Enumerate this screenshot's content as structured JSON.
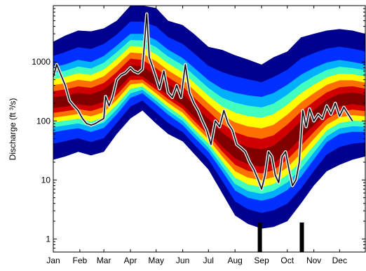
{
  "chart_data": {
    "type": "area",
    "title": "",
    "xlabel": "",
    "ylabel": "Discharge (ft ³/s)",
    "yscale": "log",
    "ylim": [
      0.6,
      9000
    ],
    "xlim": [
      1,
      365
    ],
    "grid": false,
    "legend": "none",
    "x_ticks": [
      {
        "label": "Jan",
        "day": 1
      },
      {
        "label": "Feb",
        "day": 32
      },
      {
        "label": "Mar",
        "day": 60
      },
      {
        "label": "Apr",
        "day": 91
      },
      {
        "label": "May",
        "day": 121
      },
      {
        "label": "Jun",
        "day": 152
      },
      {
        "label": "Jul",
        "day": 182
      },
      {
        "label": "Aug",
        "day": 213
      },
      {
        "label": "Sep",
        "day": 244
      },
      {
        "label": "Oct",
        "day": 274
      },
      {
        "label": "Nov",
        "day": 305
      },
      {
        "label": "Dec",
        "day": 335
      }
    ],
    "y_ticks": [
      {
        "label": "1",
        "value": 1
      },
      {
        "label": "10",
        "value": 10
      },
      {
        "label": "100",
        "value": 100
      },
      {
        "label": "1000",
        "value": 1000
      }
    ],
    "band_colors": [
      "#00008f",
      "#0030ff",
      "#00b0ff",
      "#40ffbf",
      "#ffff00",
      "#ff7000",
      "#d00000",
      "#800000"
    ],
    "line_color": "#111111",
    "line_halo_color": "#e8e8e8",
    "marker_color": "#000000",
    "band_envelope": {
      "x": [
        1,
        15,
        30,
        45,
        60,
        75,
        91,
        105,
        121,
        135,
        152,
        165,
        182,
        198,
        213,
        228,
        244,
        258,
        274,
        290,
        305,
        320,
        335,
        350,
        365
      ],
      "min": [
        22,
        25,
        30,
        26,
        30,
        60,
        110,
        150,
        90,
        60,
        45,
        28,
        15,
        6,
        2.5,
        1.8,
        1.5,
        1.6,
        2.0,
        4,
        8,
        14,
        18,
        22,
        25
      ],
      "p10": [
        60,
        65,
        70,
        60,
        70,
        120,
        230,
        280,
        180,
        120,
        80,
        50,
        28,
        13,
        6,
        4.5,
        4,
        4.5,
        6,
        10,
        20,
        40,
        55,
        60,
        60
      ],
      "median": [
        200,
        210,
        230,
        220,
        260,
        400,
        700,
        650,
        450,
        320,
        220,
        140,
        80,
        45,
        30,
        24,
        22,
        25,
        40,
        70,
        110,
        170,
        220,
        240,
        220
      ],
      "p90": [
        900,
        1000,
        1200,
        1100,
        1400,
        2100,
        3300,
        3300,
        2600,
        1800,
        1300,
        900,
        550,
        400,
        350,
        320,
        300,
        350,
        480,
        700,
        900,
        1100,
        1200,
        1100,
        1000
      ],
      "max": [
        2200,
        2800,
        3400,
        3300,
        3700,
        5000,
        9000,
        9000,
        8200,
        5000,
        4200,
        3000,
        1800,
        1600,
        1300,
        1100,
        900,
        1200,
        1500,
        2600,
        3000,
        3400,
        3600,
        3400,
        3000
      ]
    },
    "series": [
      {
        "x": [
          1,
          5,
          10,
          15,
          20,
          25,
          30,
          35,
          40,
          45,
          50,
          55,
          60,
          62,
          66,
          70,
          75,
          80,
          85,
          91,
          95,
          100,
          105,
          110,
          113,
          116,
          120,
          125,
          130,
          135,
          140,
          145,
          150,
          155,
          160,
          165,
          170,
          175,
          180,
          185,
          190,
          195,
          200,
          205,
          210,
          215,
          220,
          225,
          230,
          235,
          240,
          244,
          248,
          252,
          256,
          260,
          264,
          268,
          272,
          276,
          280,
          284,
          288,
          292,
          296,
          300,
          305,
          310,
          315,
          320,
          325,
          330,
          335,
          340,
          345,
          350
        ],
        "y": [
          550,
          900,
          600,
          400,
          220,
          180,
          150,
          110,
          90,
          85,
          90,
          100,
          110,
          260,
          180,
          250,
          500,
          600,
          650,
          800,
          700,
          650,
          750,
          6500,
          1200,
          900,
          600,
          350,
          700,
          300,
          250,
          400,
          250,
          900,
          300,
          200,
          150,
          100,
          70,
          40,
          100,
          80,
          150,
          90,
          70,
          40,
          35,
          30,
          20,
          15,
          10,
          7,
          12,
          30,
          25,
          12,
          9,
          25,
          30,
          15,
          8,
          10,
          20,
          150,
          80,
          160,
          100,
          130,
          110,
          180,
          130,
          200,
          120,
          170,
          130,
          100
        ]
      }
    ],
    "markers": [
      {
        "day": 242,
        "label": "",
        "value": 1.9
      },
      {
        "day": 291,
        "label": "",
        "value": 1.9
      }
    ]
  }
}
